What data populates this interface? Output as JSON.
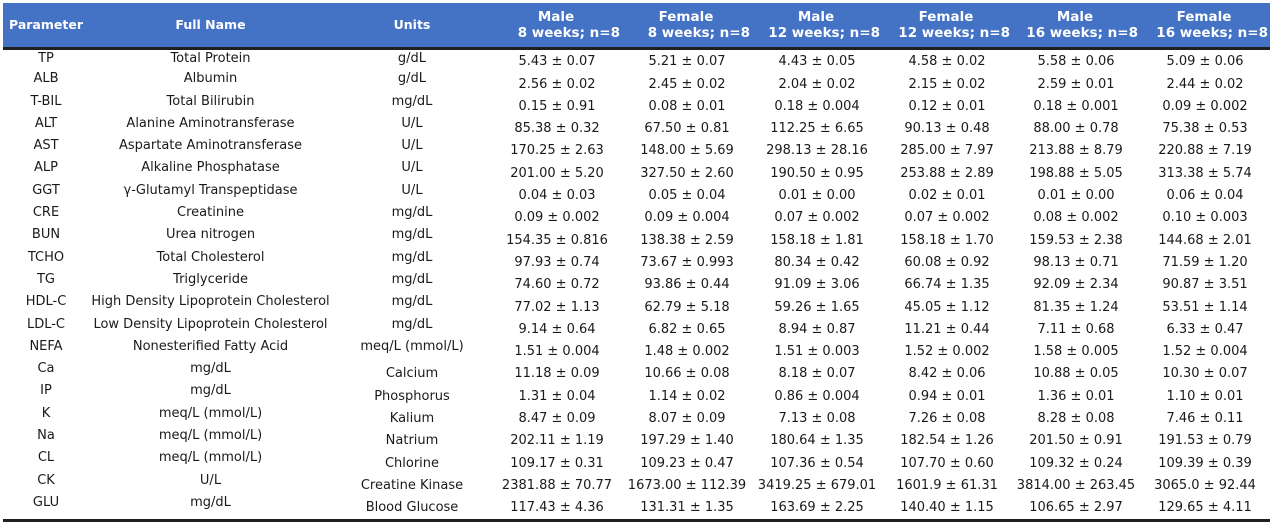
{
  "headers": {
    "parameter": "Parameter",
    "full_name": "Full Name",
    "units": "Units",
    "groups": [
      {
        "sex": "Male",
        "sub": "8 weeks; n=8"
      },
      {
        "sex": "Female",
        "sub": "8 weeks; n=8"
      },
      {
        "sex": "Male",
        "sub": "12 weeks; n=8"
      },
      {
        "sex": "Female",
        "sub": "12 weeks; n=8"
      },
      {
        "sex": "Male",
        "sub": "16 weeks; n=8"
      },
      {
        "sex": "Female",
        "sub": "16 weeks; n=8"
      }
    ]
  },
  "rows": [
    {
      "param": "TP",
      "name": "Total Protein",
      "units": "g/dL",
      "vals": [
        "5.43 ± 0.07",
        "5.21 ± 0.07",
        "4.43 ± 0.05",
        "4.58 ± 0.02",
        "5.58 ± 0.06",
        "5.09 ± 0.06"
      ]
    },
    {
      "param": "ALB",
      "name": "Albumin",
      "units": "g/dL",
      "vals": [
        "2.56 ± 0.02",
        "2.45 ± 0.02",
        "2.04 ± 0.02",
        "2.15 ± 0.02",
        "2.59 ± 0.01",
        "2.44 ± 0.02"
      ]
    },
    {
      "param": "T-BIL",
      "name": "Total Bilirubin",
      "units": "mg/dL",
      "vals": [
        "0.15 ± 0.91",
        "0.08 ± 0.01",
        "0.18 ± 0.004",
        "0.12 ± 0.01",
        "0.18 ± 0.001",
        "0.09 ± 0.002"
      ]
    },
    {
      "param": "ALT",
      "name": "Alanine Aminotransferase",
      "units": "U/L",
      "vals": [
        "85.38 ± 0.32",
        "67.50 ± 0.81",
        "112.25 ± 6.65",
        "90.13 ± 0.48",
        "88.00 ± 0.78",
        "75.38 ± 0.53"
      ]
    },
    {
      "param": "AST",
      "name": "Aspartate Aminotransferase",
      "units": "U/L",
      "vals": [
        "170.25 ± 2.63",
        "148.00 ± 5.69",
        "298.13 ± 28.16",
        "285.00 ± 7.97",
        "213.88 ± 8.79",
        "220.88 ± 7.19"
      ]
    },
    {
      "param": "ALP",
      "name": "Alkaline Phosphatase",
      "units": "U/L",
      "vals": [
        "201.00 ± 5.20",
        "327.50 ± 2.60",
        "190.50 ± 0.95",
        "253.88 ± 2.89",
        "198.88 ± 5.05",
        "313.38 ± 5.74"
      ]
    },
    {
      "param": "GGT",
      "name": "γ-Glutamyl Transpeptidase",
      "units": "U/L",
      "vals": [
        "0.04 ± 0.03",
        "0.05 ± 0.04",
        "0.01 ± 0.00",
        "0.02 ± 0.01",
        "0.01 ± 0.00",
        "0.06 ± 0.04"
      ]
    },
    {
      "param": "CRE",
      "name": "Creatinine",
      "units": "mg/dL",
      "vals": [
        "0.09 ± 0.002",
        "0.09 ± 0.004",
        "0.07 ± 0.002",
        "0.07 ± 0.002",
        "0.08 ± 0.002",
        "0.10 ± 0.003"
      ]
    },
    {
      "param": "BUN",
      "name": "Urea nitrogen",
      "units": "mg/dL",
      "vals": [
        "154.35 ± 0.816",
        "138.38 ± 2.59",
        "158.18 ± 1.81",
        "158.18 ± 1.70",
        "159.53 ± 2.38",
        "144.68 ± 2.01"
      ]
    },
    {
      "param": "TCHO",
      "name": "Total Cholesterol",
      "units": "mg/dL",
      "vals": [
        "97.93 ± 0.74",
        "73.67 ± 0.993",
        "80.34 ± 0.42",
        "60.08 ± 0.92",
        "98.13 ± 0.71",
        "71.59 ± 1.20"
      ]
    },
    {
      "param": "TG",
      "name": "Triglyceride",
      "units": "mg/dL",
      "vals": [
        "74.60 ± 0.72",
        "93.86 ± 0.44",
        "91.09 ± 3.06",
        "66.74 ± 1.35",
        "92.09 ± 2.34",
        "90.87 ± 3.51"
      ]
    },
    {
      "param": "HDL-C",
      "name": "High Density Lipoprotein Cholesterol",
      "units": "mg/dL",
      "vals": [
        "77.02 ± 1.13",
        "62.79 ± 5.18",
        "59.26 ± 1.65",
        "45.05 ± 1.12",
        "81.35 ± 1.24",
        "53.51 ± 1.14"
      ]
    },
    {
      "param": "LDL-C",
      "name": "Low Density Lipoprotein Cholesterol",
      "units": "mg/dL",
      "vals": [
        "9.14 ± 0.64",
        "6.82 ± 0.65",
        "8.94 ± 0.87",
        "11.21 ± 0.44",
        "7.11 ± 0.68",
        "6.33 ± 0.47"
      ]
    },
    {
      "param": "NEFA",
      "name": "Nonesterified Fatty Acid",
      "units": "meq/L (mmol/L)",
      "vals": [
        "1.51 ± 0.004",
        "1.48 ± 0.002",
        "1.51 ± 0.003",
        "1.52 ± 0.002",
        "1.58 ± 0.005",
        "1.52 ± 0.004"
      ]
    },
    {
      "param": "Ca",
      "name": "mg/dL",
      "units": "Calcium",
      "vals": [
        "11.18 ± 0.09",
        "10.66 ± 0.08",
        "8.18 ± 0.07",
        "8.42 ± 0.06",
        "10.88 ± 0.05",
        "10.30 ± 0.07"
      ]
    },
    {
      "param": "IP",
      "name": "mg/dL",
      "units": "Phosphorus",
      "vals": [
        "1.31 ± 0.04",
        "1.14 ± 0.02",
        "0.86 ± 0.004",
        "0.94 ± 0.01",
        "1.36 ± 0.01",
        "1.10 ± 0.01"
      ]
    },
    {
      "param": "K",
      "name": "meq/L (mmol/L)",
      "units": "Kalium",
      "vals": [
        "8.47 ± 0.09",
        "8.07 ± 0.09",
        "7.13 ± 0.08",
        "7.26 ± 0.08",
        "8.28 ± 0.08",
        "7.46 ± 0.11"
      ]
    },
    {
      "param": "Na",
      "name": "meq/L (mmol/L)",
      "units": "Natrium",
      "vals": [
        "202.11 ± 1.19",
        "197.29 ± 1.40",
        "180.64 ± 1.35",
        "182.54 ± 1.26",
        "201.50 ± 0.91",
        "191.53 ± 0.79"
      ]
    },
    {
      "param": "CL",
      "name": "meq/L (mmol/L)",
      "units": "Chlorine",
      "vals": [
        "109.17 ± 0.31",
        "109.23 ± 0.47",
        "107.36 ± 0.54",
        "107.70 ± 0.60",
        "109.32 ± 0.24",
        "109.39 ± 0.39"
      ]
    },
    {
      "param": "CK",
      "name": "U/L",
      "units": "Creatine Kinase",
      "vals": [
        "2381.88 ± 70.77",
        "1673.00 ± 112.39",
        "3419.25 ± 679.01",
        "1601.9 ± 61.31",
        "3814.00 ± 263.45",
        "3065.0 ± 92.44"
      ]
    },
    {
      "param": "GLU",
      "name": "mg/dL",
      "units": "Blood Glucose",
      "vals": [
        "117.43 ± 4.36",
        "131.31 ± 1.35",
        "163.69 ± 2.25",
        "140.40 ± 1.15",
        "106.65 ± 2.97",
        "129.65 ± 4.11"
      ]
    }
  ]
}
